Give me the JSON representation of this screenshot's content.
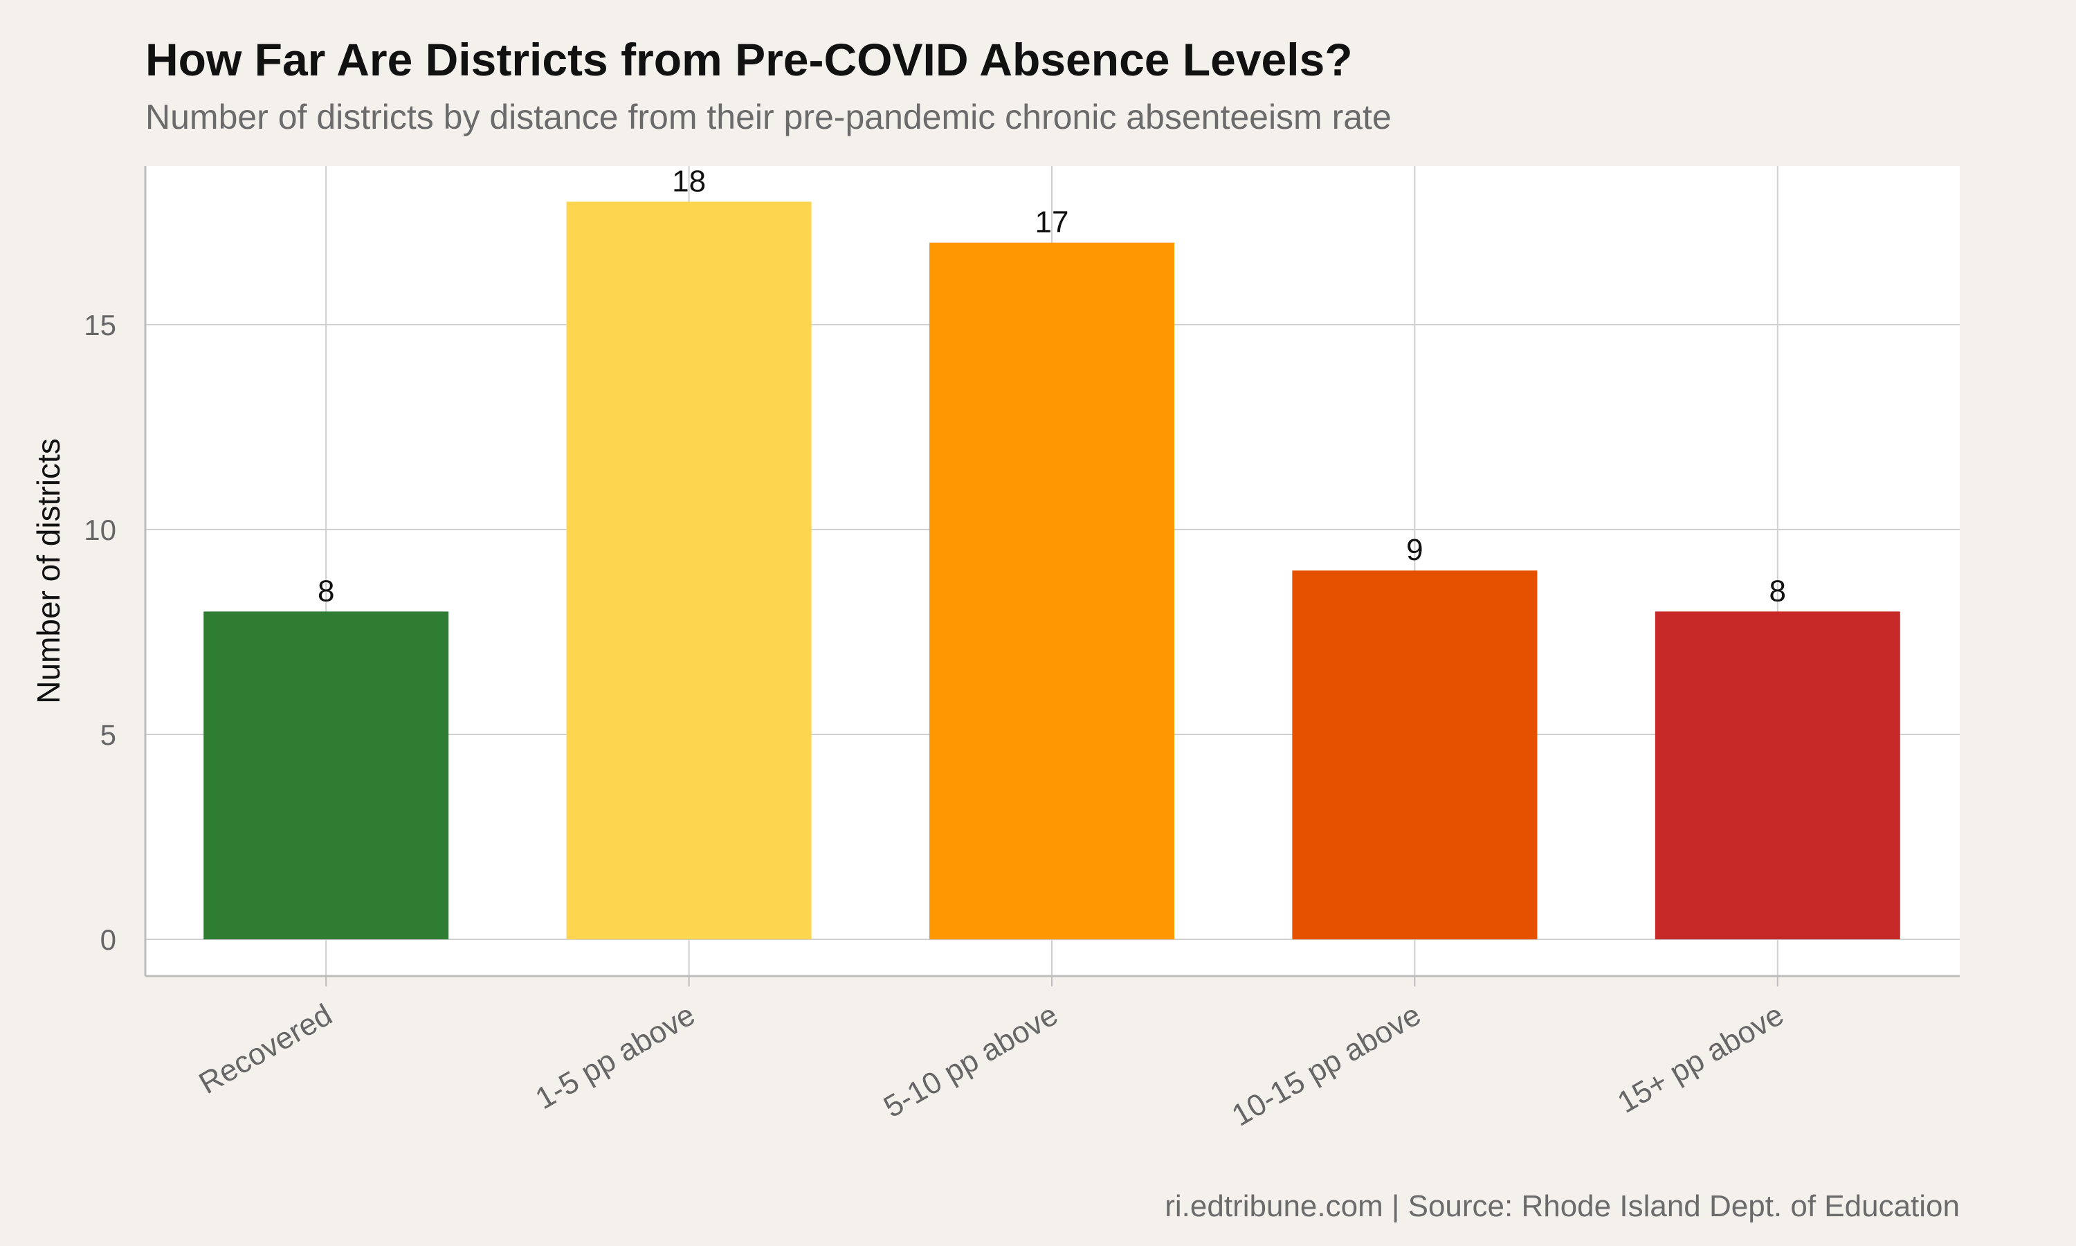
{
  "title": "How Far Are Districts from Pre-COVID Absence Levels?",
  "subtitle": "Number of districts by distance from their pre-pandemic chronic absenteeism rate",
  "caption": "ri.edtribune.com | Source: Rhode Island Dept. of Education",
  "chart_data": {
    "type": "bar",
    "categories": [
      "Recovered",
      "1-5 pp above",
      "5-10 pp above",
      "10-15 pp above",
      "15+ pp above"
    ],
    "values": [
      8,
      18,
      17,
      9,
      8
    ],
    "data_labels": [
      "8",
      "18",
      "17",
      "9",
      "8"
    ],
    "colors": [
      "#2e7d32",
      "#fdd54f",
      "#ff9800",
      "#e65100",
      "#c62828"
    ],
    "title": "How Far Are Districts from Pre-COVID Absence Levels?",
    "subtitle": "Number of districts by distance from their pre-pandemic chronic absenteeism rate",
    "xlabel": "",
    "ylabel": "Number of districts",
    "ylim": [
      0,
      18.9
    ],
    "yticks": [
      0,
      5,
      10,
      15
    ],
    "ytick_labels": [
      "0",
      "5",
      "10",
      "15"
    ],
    "grid": true,
    "legend": "none"
  }
}
